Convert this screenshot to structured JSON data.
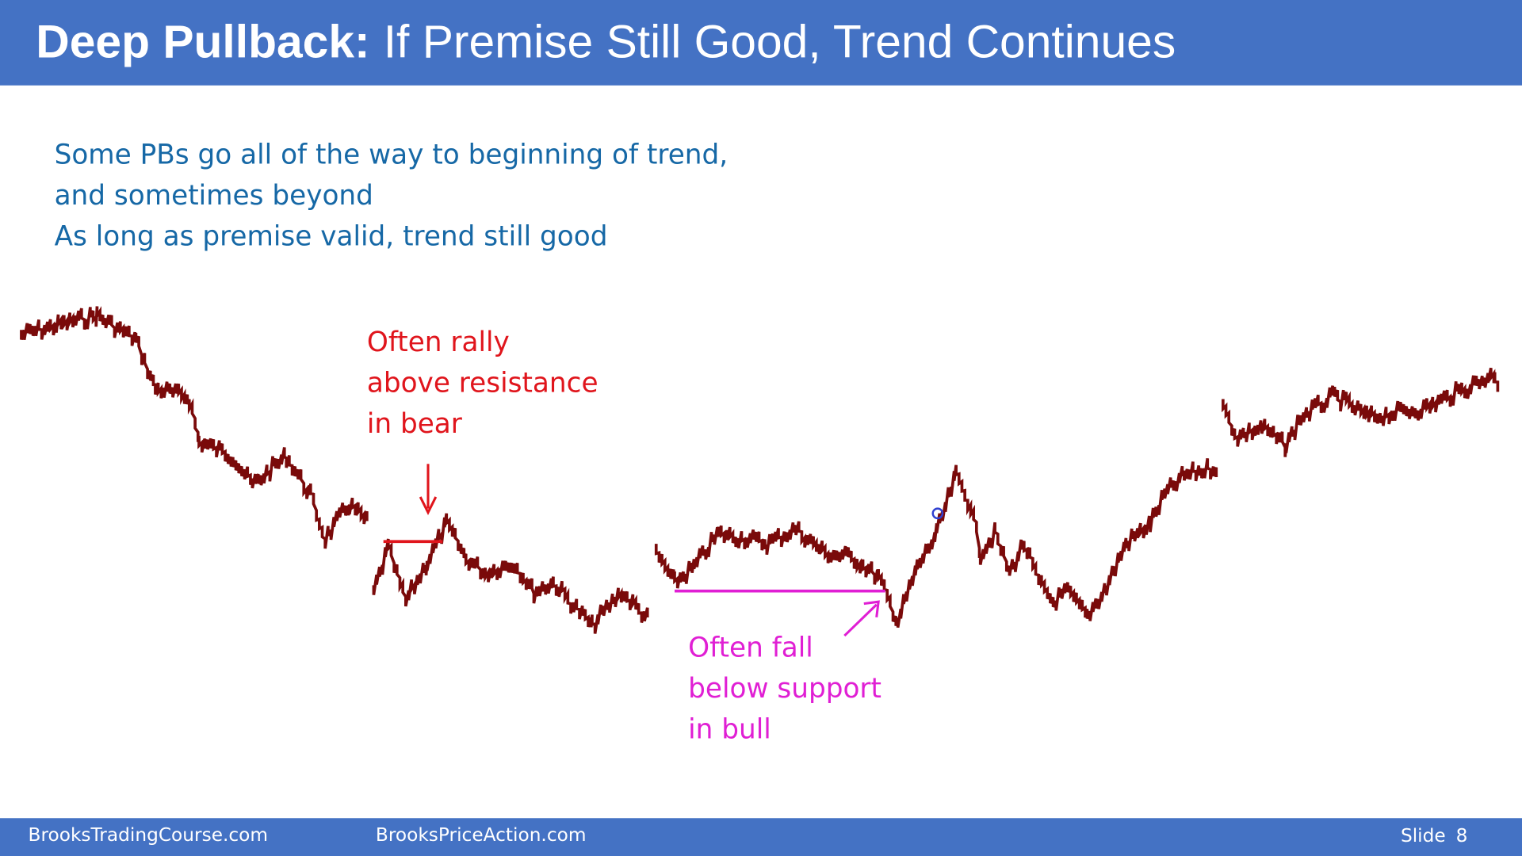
{
  "header": {
    "title_bold": "Deep Pullback:",
    "title_rest": "If Premise Still Good, Trend Continues"
  },
  "body": {
    "lines": [
      "Some PBs go all of the way to beginning of trend,",
      "and sometimes beyond",
      "As long as premise valid, trend still good"
    ]
  },
  "annotations": {
    "resistance": {
      "lines": [
        "Often rally",
        "above resistance",
        "in bear"
      ]
    },
    "support": {
      "lines": [
        "Often fall",
        "below support",
        "in bull"
      ]
    }
  },
  "footer": {
    "left": "BrooksTradingCourse.com",
    "center": "BrooksPriceAction.com",
    "slide_label": "Slide",
    "slide_number": 8
  }
}
